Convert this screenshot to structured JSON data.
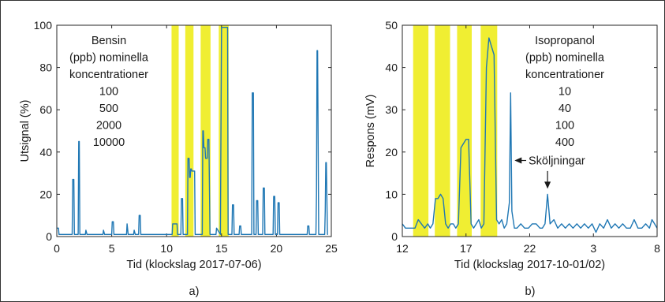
{
  "chart_data": [
    {
      "type": "line",
      "panel_label": "a)",
      "xlabel": "Tid (klockslag 2017-07-06)",
      "ylabel": "Utsignal (%)",
      "xlim": [
        0,
        25
      ],
      "ylim": [
        0,
        100
      ],
      "xticks": [
        0,
        5,
        10,
        15,
        20,
        25
      ],
      "yticks": [
        0,
        20,
        40,
        60,
        80,
        100
      ],
      "annotation_lines": [
        "Bensin",
        "(ppb) nominella",
        "koncentrationer",
        "100",
        "500",
        "2000",
        "10000"
      ],
      "colors": {
        "line": "#1f77b4",
        "band": "#f0ee32"
      },
      "bands": [
        [
          10.45,
          11.1
        ],
        [
          11.7,
          12.45
        ],
        [
          13.1,
          14.0
        ],
        [
          14.75,
          15.65
        ]
      ],
      "series": [
        {
          "x": [
            0,
            0.15,
            0.2,
            0.3,
            1.4,
            1.45,
            1.55,
            1.6,
            1.95,
            2.0,
            2.05,
            2.1,
            2.6,
            2.65,
            2.75,
            4.2,
            4.25,
            4.35,
            5.0,
            5.05,
            5.15,
            5.2,
            6.35,
            6.4,
            6.5,
            7.0,
            7.05,
            7.15,
            7.45,
            7.5,
            7.6,
            7.65,
            10.5,
            10.55,
            10.95,
            11.0,
            11.3,
            11.35,
            11.45,
            11.5,
            11.9,
            11.95,
            12.05,
            12.1,
            12.15,
            12.2,
            12.25,
            12.3,
            12.55,
            12.6,
            13.25,
            13.3,
            13.35,
            13.4,
            13.5,
            13.55,
            13.7,
            13.75,
            13.85,
            13.95,
            14.0,
            14.05,
            14.5,
            14.55,
            14.9,
            15.0,
            15.55,
            15.6,
            15.95,
            16.0,
            16.1,
            16.15,
            16.6,
            16.65,
            16.75,
            16.8,
            17.75,
            17.8,
            17.9,
            17.95,
            18.15,
            18.2,
            18.3,
            18.35,
            18.75,
            18.8,
            18.9,
            18.95,
            19.7,
            19.75,
            19.85,
            19.9,
            20.1,
            20.15,
            20.25,
            20.3,
            22.8,
            22.85,
            22.95,
            23.0,
            23.6,
            23.65,
            23.7,
            23.75,
            23.85,
            24.4,
            24.45,
            24.5,
            24.55,
            24.65,
            24.7
          ],
          "y": [
            4,
            4,
            1,
            1,
            1,
            27,
            27,
            1,
            1,
            45,
            45,
            1,
            1,
            3,
            1,
            1,
            3,
            1,
            1,
            7,
            7,
            1,
            1,
            6,
            1,
            1,
            3,
            1,
            1,
            10,
            10,
            1,
            1,
            6,
            6,
            1,
            1,
            18,
            18,
            1,
            1,
            37,
            37,
            28,
            28,
            32,
            32,
            31,
            31,
            1,
            1,
            50,
            50,
            42,
            42,
            37,
            37,
            46,
            46,
            1,
            1,
            1,
            1,
            4,
            1,
            99,
            99,
            1,
            1,
            15,
            15,
            1,
            1,
            5,
            5,
            1,
            1,
            68,
            68,
            1,
            1,
            17,
            17,
            1,
            1,
            23,
            23,
            1,
            1,
            19,
            19,
            1,
            1,
            16,
            16,
            1,
            1,
            5,
            5,
            1,
            1,
            20,
            88,
            88,
            1,
            1,
            12,
            35,
            35,
            1,
            1
          ]
        }
      ]
    },
    {
      "type": "line",
      "panel_label": "b)",
      "xlabel": "Tid (klockslag 2017-10-01/02)",
      "ylabel": "Respons (mV)",
      "xlim": [
        0,
        20
      ],
      "ylim": [
        0,
        50
      ],
      "xticks": [
        0,
        5,
        10,
        15,
        20
      ],
      "xticklabels": [
        "12",
        "17",
        "22",
        "3",
        "8"
      ],
      "yticks": [
        0,
        10,
        20,
        30,
        40,
        50
      ],
      "annotation_lines": [
        "Isopropanol",
        "(ppb) nominella",
        "koncentrationer",
        "10",
        "40",
        "100",
        "400"
      ],
      "arrow_label": "Sköljningar",
      "colors": {
        "line": "#1f77b4",
        "band": "#f0ee32"
      },
      "bands": [
        [
          0.85,
          2.05
        ],
        [
          2.55,
          3.75
        ],
        [
          4.3,
          5.45
        ],
        [
          6.15,
          7.45
        ]
      ],
      "series": [
        {
          "x": [
            0,
            0.25,
            0.5,
            0.75,
            1.0,
            1.25,
            1.5,
            1.75,
            2.0,
            2.2,
            2.4,
            2.6,
            2.8,
            3.0,
            3.2,
            3.4,
            3.6,
            3.8,
            4.0,
            4.2,
            4.4,
            4.6,
            4.8,
            5.0,
            5.2,
            5.4,
            5.6,
            5.8,
            6.0,
            6.2,
            6.4,
            6.6,
            6.8,
            7.0,
            7.2,
            7.4,
            7.6,
            7.8,
            8.0,
            8.2,
            8.4,
            8.5,
            8.6,
            8.8,
            9.0,
            9.3,
            9.6,
            9.9,
            10.2,
            10.5,
            10.8,
            11.0,
            11.2,
            11.4,
            11.6,
            11.9,
            12.2,
            12.5,
            12.8,
            13.1,
            13.4,
            13.7,
            14.0,
            14.3,
            14.6,
            14.9,
            15.2,
            15.5,
            15.8,
            16.1,
            16.4,
            16.7,
            17.0,
            17.3,
            17.6,
            17.9,
            18.2,
            18.5,
            18.8,
            19.1,
            19.4,
            19.6,
            19.8,
            20.0
          ],
          "y": [
            3,
            2,
            2,
            2,
            2,
            4,
            3,
            2,
            3,
            2,
            3,
            9,
            9,
            10,
            9,
            3,
            2,
            3,
            3,
            2,
            3,
            21,
            22,
            23,
            23,
            3,
            2,
            3,
            4,
            2,
            3,
            40,
            47,
            45,
            43,
            4,
            3,
            4,
            2,
            3,
            8,
            34,
            6,
            2,
            2,
            3,
            2,
            2,
            3,
            3,
            2,
            2,
            3,
            10,
            3,
            4,
            2,
            3,
            2,
            3,
            2,
            3,
            2,
            3,
            2,
            3,
            1,
            3,
            2,
            4,
            2,
            3,
            2,
            3,
            2,
            2,
            4,
            2,
            2,
            3,
            2,
            4,
            3,
            2
          ]
        }
      ]
    }
  ]
}
